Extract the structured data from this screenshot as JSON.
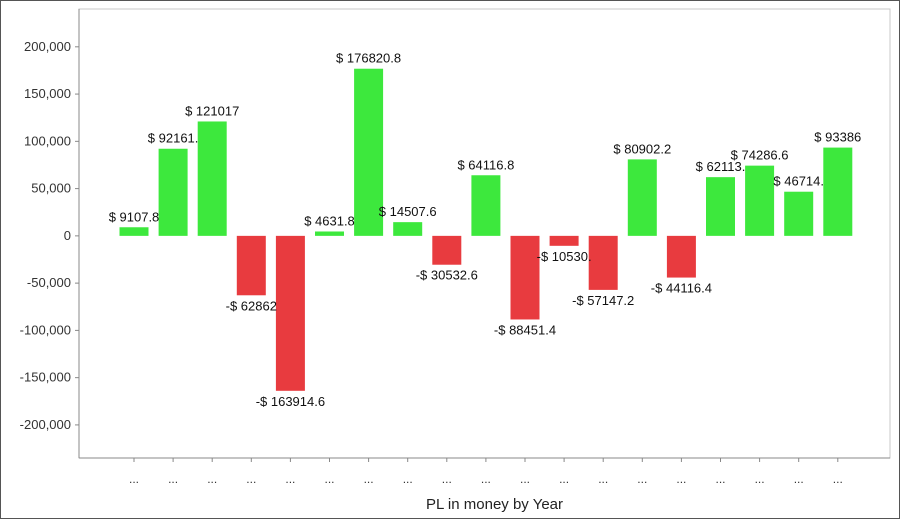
{
  "chart_data": {
    "type": "bar",
    "title": "",
    "xlabel": "PL in money by Year",
    "ylabel": "",
    "ylim": [
      -235000,
      240000
    ],
    "yticks": [
      -200000,
      -150000,
      -100000,
      -50000,
      0,
      50000,
      100000,
      150000,
      200000
    ],
    "ytick_labels": [
      "-200,000",
      "-150,000",
      "-100,000",
      "-50,000",
      "0",
      "50,000",
      "100,000",
      "150,000",
      "200,000"
    ],
    "grid": true,
    "categories": [
      "...",
      "...",
      "...",
      "...",
      "...",
      "...",
      "...",
      "...",
      "...",
      "...",
      "...",
      "...",
      "...",
      "...",
      "...",
      "...",
      "...",
      "...",
      "..."
    ],
    "values": [
      9107.8,
      92161,
      121017,
      -62862,
      -163914.6,
      4631.8,
      176820.8,
      14507.6,
      -30532.6,
      64116.8,
      -88451.4,
      -10530,
      -57147.2,
      80902.2,
      -44116.4,
      62113,
      74286.6,
      46714,
      93386
    ],
    "data_labels": [
      "$ 9107.8",
      "$ 92161.",
      "$ 121017",
      "-$ 62862",
      "-$ 163914.6",
      "$ 4631.8",
      "$ 176820.8",
      "$ 14507.6",
      "-$ 30532.6",
      "$ 64116.8",
      "-$ 88451.4",
      "-$ 10530.",
      "-$ 57147.2",
      "$ 80902.2",
      "-$ 44116.4",
      "$ 62113.",
      "$ 74286.6",
      "$ 46714.",
      "$ 93386"
    ],
    "colors": {
      "positive": "#3de83d",
      "negative": "#e83b3f"
    }
  }
}
